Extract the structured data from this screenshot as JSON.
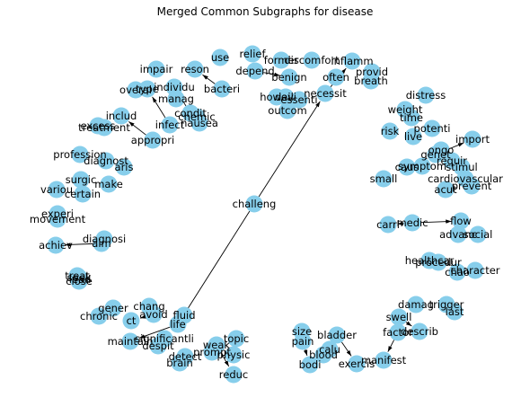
{
  "title": "Merged Common Subgraphs for disease",
  "colors": {
    "node": "#87ceeb",
    "edge": "#000000",
    "text": "#000000",
    "background": "#ffffff"
  },
  "nodes": [
    {
      "id": "relief",
      "label": "relief"
    },
    {
      "id": "use",
      "label": "use"
    },
    {
      "id": "reson",
      "label": "reson"
    },
    {
      "id": "bacteri",
      "label": "bacteri"
    },
    {
      "id": "depend",
      "label": "depend"
    },
    {
      "id": "former",
      "label": "former"
    },
    {
      "id": "discomfort",
      "label": "discomfort"
    },
    {
      "id": "benign",
      "label": "benign"
    },
    {
      "id": "inflamm",
      "label": "inflamm"
    },
    {
      "id": "provid",
      "label": "provid"
    },
    {
      "id": "breath",
      "label": "breath"
    },
    {
      "id": "often",
      "label": "often"
    },
    {
      "id": "howev",
      "label": "howev"
    },
    {
      "id": "daili",
      "label": "daili"
    },
    {
      "id": "essenti",
      "label": "essenti"
    },
    {
      "id": "necessit",
      "label": "necessit"
    },
    {
      "id": "outcom",
      "label": "outcom"
    },
    {
      "id": "impair",
      "label": "impair"
    },
    {
      "id": "individu",
      "label": "individu"
    },
    {
      "id": "overal",
      "label": "overal"
    },
    {
      "id": "type",
      "label": "type"
    },
    {
      "id": "manag",
      "label": "manag"
    },
    {
      "id": "condit",
      "label": "condit"
    },
    {
      "id": "chemic",
      "label": "chemic"
    },
    {
      "id": "nausea",
      "label": "nausea"
    },
    {
      "id": "infect",
      "label": "infect"
    },
    {
      "id": "includ",
      "label": "includ"
    },
    {
      "id": "excess",
      "label": "excess"
    },
    {
      "id": "treatment",
      "label": "treatment"
    },
    {
      "id": "appropri",
      "label": "appropri"
    },
    {
      "id": "profession",
      "label": "profession"
    },
    {
      "id": "diagnost",
      "label": "diagnost"
    },
    {
      "id": "aris",
      "label": "aris"
    },
    {
      "id": "surgic",
      "label": "surgic"
    },
    {
      "id": "make",
      "label": "make"
    },
    {
      "id": "variou",
      "label": "variou"
    },
    {
      "id": "certain",
      "label": "certain"
    },
    {
      "id": "experi",
      "label": "experi"
    },
    {
      "id": "movement",
      "label": "movement"
    },
    {
      "id": "diagnosi",
      "label": "diagnosi"
    },
    {
      "id": "aim",
      "label": "aim"
    },
    {
      "id": "achiev",
      "label": "achiev"
    },
    {
      "id": "lead",
      "label": "lead"
    },
    {
      "id": "treat",
      "label": "treat"
    },
    {
      "id": "close",
      "label": "close"
    },
    {
      "id": "seek",
      "label": "seek"
    },
    {
      "id": "challeng",
      "label": "challeng"
    },
    {
      "id": "distress",
      "label": "distress"
    },
    {
      "id": "weight",
      "label": "weight"
    },
    {
      "id": "time",
      "label": "time"
    },
    {
      "id": "risk",
      "label": "risk"
    },
    {
      "id": "live",
      "label": "live"
    },
    {
      "id": "potenti",
      "label": "potenti"
    },
    {
      "id": "import",
      "label": "import"
    },
    {
      "id": "ongo",
      "label": "ongo"
    },
    {
      "id": "genet",
      "label": "genet"
    },
    {
      "id": "requir",
      "label": "requir"
    },
    {
      "id": "symptom",
      "label": "symptom"
    },
    {
      "id": "stimul",
      "label": "stimul"
    },
    {
      "id": "caus",
      "label": "caus"
    },
    {
      "id": "small",
      "label": "small"
    },
    {
      "id": "cardiovascular",
      "label": "cardiovascular"
    },
    {
      "id": "acut",
      "label": "acut"
    },
    {
      "id": "prevent",
      "label": "prevent"
    },
    {
      "id": "carri",
      "label": "carri"
    },
    {
      "id": "medic",
      "label": "medic"
    },
    {
      "id": "flow",
      "label": "flow"
    },
    {
      "id": "advanc",
      "label": "advanc"
    },
    {
      "id": "social",
      "label": "social"
    },
    {
      "id": "healthcar",
      "label": "healthcar"
    },
    {
      "id": "procedur",
      "label": "procedur"
    },
    {
      "id": "chao",
      "label": "chao"
    },
    {
      "id": "character",
      "label": "character"
    },
    {
      "id": "chang",
      "label": "chang"
    },
    {
      "id": "gener",
      "label": "gener"
    },
    {
      "id": "chronic",
      "label": "chronic"
    },
    {
      "id": "ct",
      "label": "ct"
    },
    {
      "id": "avoid",
      "label": "avoid"
    },
    {
      "id": "fluid",
      "label": "fluid"
    },
    {
      "id": "life",
      "label": "life"
    },
    {
      "id": "maintain",
      "label": "maintain"
    },
    {
      "id": "significantli",
      "label": "significantli"
    },
    {
      "id": "despit",
      "label": "despit"
    },
    {
      "id": "detect",
      "label": "detect"
    },
    {
      "id": "brain",
      "label": "brain"
    },
    {
      "id": "topic",
      "label": "topic"
    },
    {
      "id": "weak",
      "label": "weak"
    },
    {
      "id": "prompt",
      "label": "prompt"
    },
    {
      "id": "physic",
      "label": "physic"
    },
    {
      "id": "reduc",
      "label": "reduc"
    },
    {
      "id": "size",
      "label": "size"
    },
    {
      "id": "pain",
      "label": "pain"
    },
    {
      "id": "bladder",
      "label": "bladder"
    },
    {
      "id": "blood",
      "label": "blood"
    },
    {
      "id": "calu",
      "label": "calu"
    },
    {
      "id": "bodi",
      "label": "bodi"
    },
    {
      "id": "exercis",
      "label": "exercis"
    },
    {
      "id": "damag",
      "label": "damag"
    },
    {
      "id": "trigger",
      "label": "trigger"
    },
    {
      "id": "last",
      "label": "last"
    },
    {
      "id": "swell",
      "label": "swell"
    },
    {
      "id": "factor",
      "label": "factor"
    },
    {
      "id": "describ",
      "label": "describ"
    },
    {
      "id": "manifest",
      "label": "manifest"
    }
  ],
  "edges": [
    {
      "from": "bacteri",
      "to": "reson"
    },
    {
      "from": "depend",
      "to": "benign"
    },
    {
      "from": "necessit",
      "to": "inflamm"
    },
    {
      "from": "challeng",
      "to": "necessit"
    },
    {
      "from": "challeng",
      "to": "life"
    },
    {
      "from": "condit",
      "to": "individu"
    },
    {
      "from": "infect",
      "to": "type"
    },
    {
      "from": "appropri",
      "to": "includ"
    },
    {
      "from": "aim",
      "to": "achiev"
    },
    {
      "from": "medic",
      "to": "carri"
    },
    {
      "from": "medic",
      "to": "flow"
    },
    {
      "from": "caus",
      "to": "genet"
    },
    {
      "from": "genet",
      "to": "import"
    },
    {
      "from": "time",
      "to": "weight"
    },
    {
      "from": "procedur",
      "to": "character"
    },
    {
      "from": "avoid",
      "to": "ct"
    },
    {
      "from": "life",
      "to": "maintain"
    },
    {
      "from": "weak",
      "to": "reduc"
    },
    {
      "from": "pain",
      "to": "bodi"
    },
    {
      "from": "bladder",
      "to": "exercis"
    },
    {
      "from": "factor",
      "to": "manifest"
    },
    {
      "from": "swell",
      "to": "describ"
    },
    {
      "from": "calu",
      "to": "blood"
    }
  ]
}
